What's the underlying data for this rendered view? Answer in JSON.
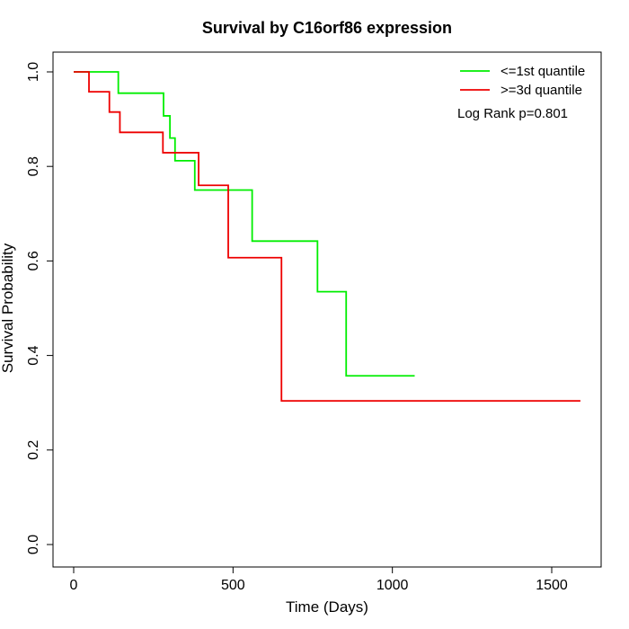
{
  "chart_data": {
    "type": "line",
    "title": "Survival by C16orf86 expression",
    "xlabel": "Time (Days)",
    "ylabel": "Survival Probability",
    "xlim": [
      0,
      1650
    ],
    "ylim": [
      0,
      1.0
    ],
    "x_ticks": [
      0,
      500,
      1000,
      1500
    ],
    "y_ticks": [
      0.0,
      0.2,
      0.4,
      0.6,
      0.8,
      1.0
    ],
    "x_tick_labels": [
      "0",
      "500",
      "1000",
      "1500"
    ],
    "y_tick_labels": [
      "0.0",
      "0.2",
      "0.4",
      "0.6",
      "0.8",
      "1.0"
    ],
    "grid": false,
    "legend_position": "top-right",
    "annotation": "Log Rank p=0.801",
    "series": [
      {
        "name": "<=1st quantile",
        "color": "#00ee00",
        "step": true,
        "x": [
          0,
          140,
          282,
          302,
          318,
          380,
          560,
          765,
          855,
          1070
        ],
        "y": [
          1.0,
          0.955,
          0.907,
          0.86,
          0.812,
          0.75,
          0.642,
          0.535,
          0.357,
          0.357
        ]
      },
      {
        "name": ">=3d quantile",
        "color": "#ee0000",
        "step": true,
        "x": [
          0,
          48,
          112,
          145,
          280,
          392,
          485,
          652,
          1590
        ],
        "y": [
          1.0,
          0.958,
          0.915,
          0.872,
          0.829,
          0.76,
          0.607,
          0.304,
          0.304
        ]
      }
    ]
  }
}
